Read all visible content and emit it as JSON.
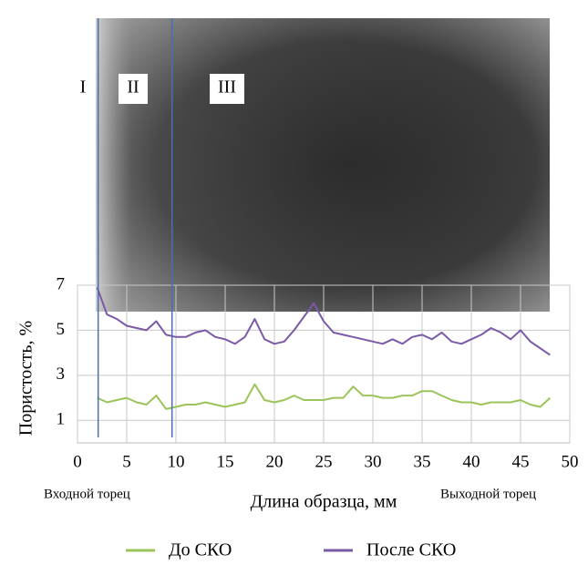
{
  "chart_data": {
    "type": "line",
    "y_label": "Пористость, %",
    "x_label": "Длина образца, мм",
    "x_start_label": "Входной торец",
    "x_end_label": "Выходной торец",
    "zones": [
      {
        "label": "I"
      },
      {
        "label": "II"
      },
      {
        "label": "III"
      }
    ],
    "boundaries": [
      2.1,
      9.6
    ],
    "boundary_color": "#4a6fb0",
    "x": [
      2,
      3,
      4,
      5,
      6,
      7,
      8,
      9,
      10,
      11,
      12,
      13,
      14,
      15,
      16,
      17,
      18,
      19,
      20,
      21,
      22,
      23,
      24,
      25,
      26,
      27,
      28,
      29,
      30,
      31,
      32,
      33,
      34,
      35,
      36,
      37,
      38,
      39,
      40,
      41,
      42,
      43,
      44,
      45,
      46,
      47,
      48
    ],
    "series": [
      {
        "name": "До СКО",
        "color": "#9bc45a",
        "values": [
          2.0,
          1.8,
          1.9,
          2.0,
          1.8,
          1.7,
          2.1,
          1.5,
          1.6,
          1.7,
          1.7,
          1.8,
          1.7,
          1.6,
          1.7,
          1.8,
          2.6,
          1.9,
          1.8,
          1.9,
          2.1,
          1.9,
          1.9,
          1.9,
          2.0,
          2.0,
          2.5,
          2.1,
          2.1,
          2.0,
          2.0,
          2.1,
          2.1,
          2.3,
          2.3,
          2.1,
          1.9,
          1.8,
          1.8,
          1.7,
          1.8,
          1.8,
          1.8,
          1.9,
          1.7,
          1.6,
          2.0
        ]
      },
      {
        "name": "После СКО",
        "color": "#7a5aa6",
        "values": [
          6.9,
          5.7,
          5.5,
          5.2,
          5.1,
          5.0,
          5.4,
          4.8,
          4.7,
          4.7,
          4.9,
          5.0,
          4.7,
          4.6,
          4.4,
          4.7,
          5.5,
          4.6,
          4.4,
          4.5,
          5.0,
          5.6,
          6.2,
          5.4,
          4.9,
          4.8,
          4.7,
          4.6,
          4.5,
          4.4,
          4.6,
          4.4,
          4.7,
          4.8,
          4.6,
          4.9,
          4.5,
          4.4,
          4.6,
          4.8,
          5.1,
          4.9,
          4.6,
          5.0,
          4.5,
          4.2,
          3.9
        ]
      }
    ],
    "xlim": [
      0,
      50
    ],
    "xticks": [
      0,
      5,
      10,
      15,
      20,
      25,
      30,
      35,
      40,
      45,
      50
    ],
    "ylim": [
      0,
      7
    ],
    "yticks": [
      1,
      3,
      5,
      7
    ],
    "grid": true
  }
}
